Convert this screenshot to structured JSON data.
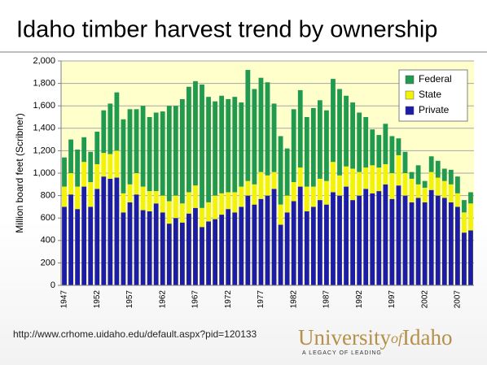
{
  "header": {
    "title": "Idaho timber harvest trend by ownership"
  },
  "chart_data": {
    "type": "stacked_bar",
    "y_label": "Million board feet (Scribner)",
    "categories": [
      "1947",
      null,
      null,
      null,
      null,
      "1952",
      null,
      null,
      null,
      null,
      "1957",
      null,
      null,
      null,
      null,
      "1962",
      null,
      null,
      null,
      null,
      "1967",
      null,
      null,
      null,
      null,
      "1972",
      null,
      null,
      null,
      null,
      "1977",
      null,
      null,
      null,
      null,
      "1982",
      null,
      null,
      null,
      null,
      "1987",
      null,
      null,
      null,
      null,
      "1992",
      null,
      null,
      null,
      null,
      "1997",
      null,
      null,
      null,
      null,
      "2002",
      null,
      null,
      null,
      null,
      "2007",
      null,
      null
    ],
    "series": [
      {
        "name": "Private",
        "color": "#1c1ca6",
        "values": [
          700,
          810,
          680,
          880,
          700,
          860,
          970,
          950,
          960,
          650,
          740,
          810,
          670,
          660,
          730,
          650,
          550,
          600,
          560,
          640,
          690,
          520,
          570,
          590,
          630,
          680,
          650,
          700,
          800,
          720,
          770,
          800,
          860,
          540,
          650,
          750,
          880,
          660,
          700,
          760,
          720,
          830,
          800,
          880,
          760,
          800,
          860,
          820,
          840,
          900,
          770,
          890,
          800,
          740,
          780,
          740,
          850,
          800,
          780,
          740,
          700,
          470,
          490
        ]
      },
      {
        "name": "State",
        "color": "#f2f20a",
        "values": [
          180,
          190,
          200,
          220,
          220,
          220,
          210,
          220,
          240,
          170,
          160,
          190,
          210,
          180,
          110,
          150,
          200,
          200,
          170,
          190,
          200,
          170,
          170,
          210,
          190,
          150,
          180,
          180,
          130,
          180,
          240,
          180,
          150,
          180,
          150,
          170,
          170,
          220,
          180,
          190,
          210,
          270,
          180,
          180,
          280,
          210,
          190,
          250,
          210,
          180,
          230,
          270,
          200,
          210,
          120,
          130,
          160,
          160,
          150,
          160,
          120,
          180,
          240
        ]
      },
      {
        "name": "Federal",
        "color": "#1f9a50",
        "values": [
          260,
          300,
          330,
          220,
          270,
          290,
          380,
          450,
          520,
          660,
          670,
          570,
          720,
          660,
          700,
          750,
          850,
          800,
          930,
          940,
          930,
          1100,
          940,
          840,
          870,
          830,
          850,
          750,
          990,
          850,
          840,
          830,
          610,
          610,
          420,
          650,
          690,
          620,
          700,
          700,
          630,
          740,
          770,
          630,
          590,
          530,
          450,
          320,
          290,
          360,
          330,
          150,
          190,
          60,
          170,
          60,
          140,
          150,
          110,
          130,
          150,
          110,
          100
        ]
      }
    ],
    "ylim": [
      0,
      2000
    ],
    "yticks": [
      0,
      200,
      400,
      600,
      800,
      {
        "value": 1000,
        "label": "1,000"
      },
      {
        "value": 1200,
        "label": "1,200"
      },
      {
        "value": 1400,
        "label": "1,400"
      },
      {
        "value": 1600,
        "label": "1,600"
      },
      {
        "value": 1800,
        "label": "1,800"
      },
      {
        "value": 2000,
        "label": "2,000"
      }
    ],
    "grid": true,
    "legend": "top-right",
    "plot_background": "#ffffcc"
  },
  "footer": {
    "url": "http://www.crhome.uidaho.edu/default.aspx?pid=120133",
    "logo": [
      "University",
      "of",
      "Idaho"
    ],
    "tagline": "A LEGACY OF LEADING"
  }
}
